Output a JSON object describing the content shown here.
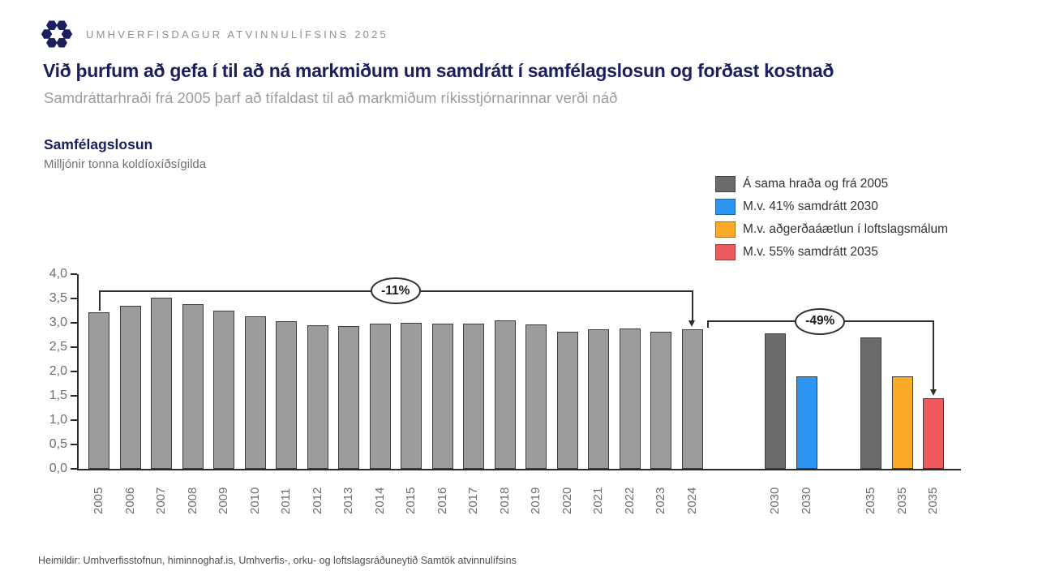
{
  "header": {
    "event_title": "UMHVERFISDAGUR ATVINNULÍFSINS 2025",
    "logo_color": "#1a1f5e"
  },
  "title": "Við þurfum að gefa í til að ná markmiðum um samdrátt í samfélagslosun og forðast kostnað",
  "subtitle": "Samdráttarhraði frá 2005 þarf að tífaldast til að markmiðum ríkisstjórnarinnar verði náð",
  "chart_heading": {
    "title": "Samfélagslosun",
    "unit": "Milljónir tonna koldíoxíðsígilda"
  },
  "legend": [
    {
      "label": "Á sama hraða og frá 2005",
      "color": "#6b6b6b"
    },
    {
      "label": "M.v. 41% samdrátt 2030",
      "color": "#2d95f2"
    },
    {
      "label": "M.v. aðgerðaáætlun í loftslagsmálum",
      "color": "#fbab28"
    },
    {
      "label": "M.v. 55% samdrátt 2035",
      "color": "#ee5a5e"
    }
  ],
  "chart_data": {
    "type": "bar",
    "title": "Samfélagslosun",
    "ylabel": "Milljónir tonna koldíoxíðsígilda",
    "ylim": [
      0,
      4.0
    ],
    "ytick_step": 0.5,
    "decimal_separator": ",",
    "grid": false,
    "legend_position": "top-right",
    "series_colors": {
      "historical": "#9c9c9c",
      "same_pace": "#6b6b6b",
      "target_2030": "#2d95f2",
      "action_plan": "#fbab28",
      "target_2035": "#ee5a5e"
    },
    "bars": [
      {
        "year": "2005",
        "value": 3.22,
        "series": "historical",
        "group": "hist"
      },
      {
        "year": "2006",
        "value": 3.35,
        "series": "historical",
        "group": "hist"
      },
      {
        "year": "2007",
        "value": 3.52,
        "series": "historical",
        "group": "hist"
      },
      {
        "year": "2008",
        "value": 3.38,
        "series": "historical",
        "group": "hist"
      },
      {
        "year": "2009",
        "value": 3.25,
        "series": "historical",
        "group": "hist"
      },
      {
        "year": "2010",
        "value": 3.13,
        "series": "historical",
        "group": "hist"
      },
      {
        "year": "2011",
        "value": 3.03,
        "series": "historical",
        "group": "hist"
      },
      {
        "year": "2012",
        "value": 2.95,
        "series": "historical",
        "group": "hist"
      },
      {
        "year": "2013",
        "value": 2.93,
        "series": "historical",
        "group": "hist"
      },
      {
        "year": "2014",
        "value": 2.99,
        "series": "historical",
        "group": "hist"
      },
      {
        "year": "2015",
        "value": 3.0,
        "series": "historical",
        "group": "hist"
      },
      {
        "year": "2016",
        "value": 2.99,
        "series": "historical",
        "group": "hist"
      },
      {
        "year": "2017",
        "value": 2.99,
        "series": "historical",
        "group": "hist"
      },
      {
        "year": "2018",
        "value": 3.05,
        "series": "historical",
        "group": "hist"
      },
      {
        "year": "2019",
        "value": 2.97,
        "series": "historical",
        "group": "hist"
      },
      {
        "year": "2020",
        "value": 2.82,
        "series": "historical",
        "group": "hist"
      },
      {
        "year": "2021",
        "value": 2.86,
        "series": "historical",
        "group": "hist"
      },
      {
        "year": "2022",
        "value": 2.88,
        "series": "historical",
        "group": "hist"
      },
      {
        "year": "2023",
        "value": 2.82,
        "series": "historical",
        "group": "hist"
      },
      {
        "year": "2024",
        "value": 2.87,
        "series": "historical",
        "group": "hist"
      },
      {
        "year": "2030",
        "value": 2.78,
        "series": "same_pace",
        "group": "y2030"
      },
      {
        "year": "2030",
        "value": 1.9,
        "series": "target_2030",
        "group": "y2030"
      },
      {
        "year": "2035",
        "value": 2.7,
        "series": "same_pace",
        "group": "y2035"
      },
      {
        "year": "2035",
        "value": 1.9,
        "series": "action_plan",
        "group": "y2035"
      },
      {
        "year": "2035",
        "value": 1.45,
        "series": "target_2035",
        "group": "y2035"
      }
    ],
    "annotations": [
      {
        "label": "-11%",
        "from_bar": 0,
        "to_bar": 19,
        "line_value": 3.67,
        "from_edge": false
      },
      {
        "label": "-49%",
        "from_bar": 19,
        "to_bar": 24,
        "line_value": 3.05,
        "from_edge": true
      }
    ]
  },
  "footer": "Heimildir: Umhverfisstofnun, himinnoghaf.is, Umhverfis-, orku- og loftslagsráðuneytið Samtök atvinnulífsins"
}
